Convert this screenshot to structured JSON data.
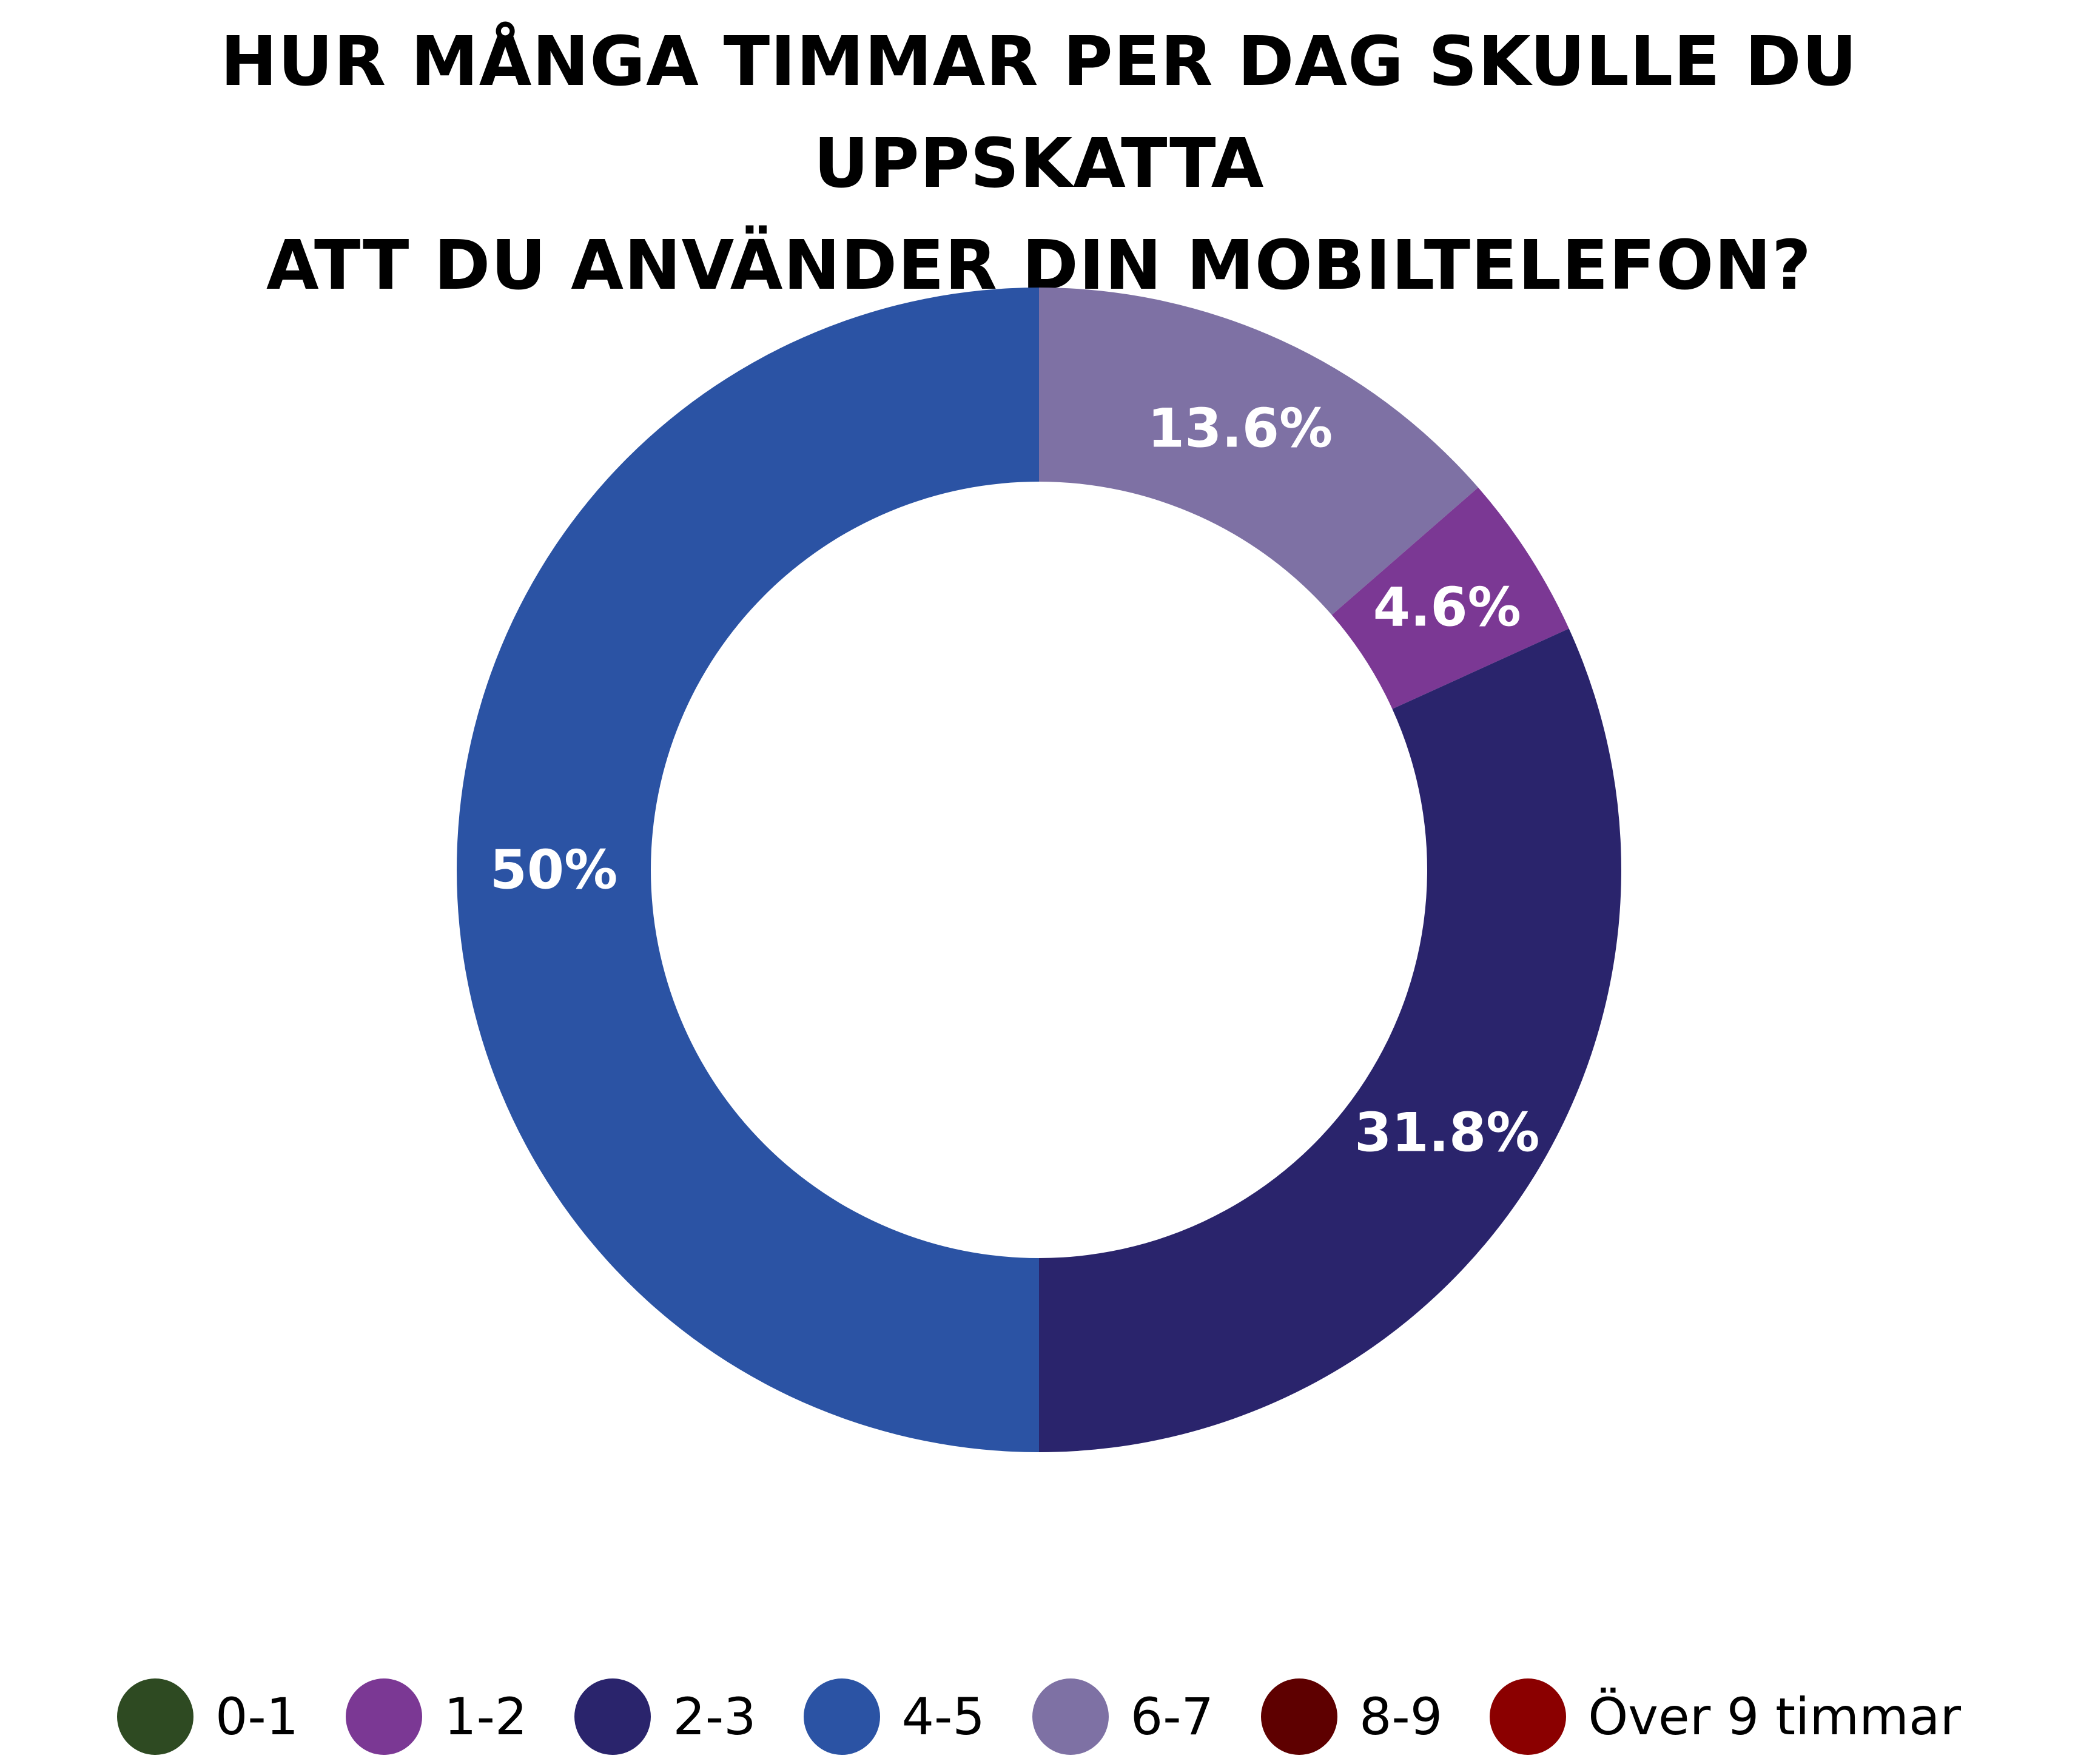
{
  "chart_data": {
    "type": "pie",
    "variant": "donut",
    "title_lines": [
      "HUR MÅNGA TIMMAR PER DAG SKULLE DU UPPSKATTA",
      "ATT DU ANVÄNDER DIN MOBILTELEFON?"
    ],
    "categories": [
      "0-1",
      "1-2",
      "2-3",
      "4-5",
      "6-7",
      "8-9",
      "Över 9 timmar"
    ],
    "values": [
      0,
      4.6,
      31.8,
      50,
      13.6,
      0,
      0
    ],
    "data_labels": [
      "",
      "4.6%",
      "31.8%",
      "50%",
      "13.6%",
      "",
      ""
    ],
    "colors": [
      "#2e4a22",
      "#7b3894",
      "#2a246c",
      "#2b53a4",
      "#7e71a4",
      "#5e0000",
      "#8b0000"
    ],
    "slice_order": [
      "6-7",
      "1-2",
      "2-3",
      "4-5"
    ],
    "start_direction": "top, clockwise",
    "legend_position": "bottom"
  }
}
